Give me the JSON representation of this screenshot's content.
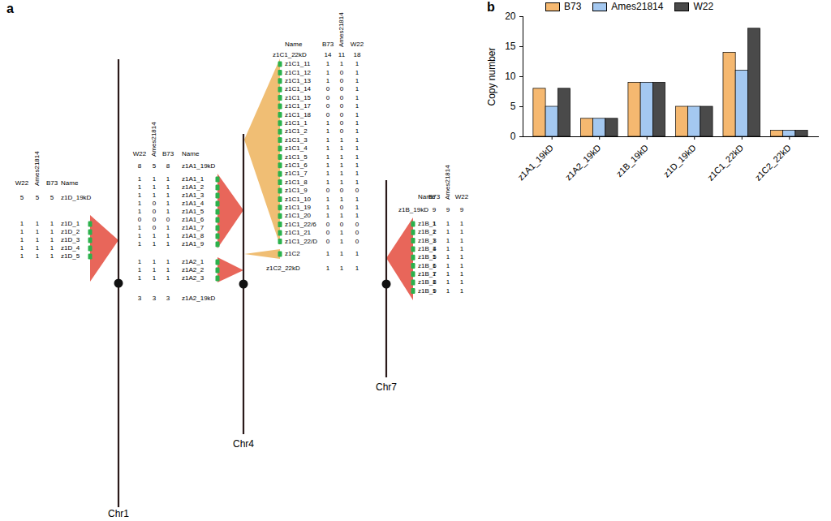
{
  "chart_data": {
    "type": "bar",
    "panel_label": "b",
    "categories": [
      "z1A1_19kD",
      "z1A2_19kD",
      "z1B_19kD",
      "z1D_19kD",
      "z1C1_22kD",
      "z1C2_22kD"
    ],
    "series": [
      {
        "name": "B73",
        "color": "#f5b870",
        "values": [
          8,
          3,
          9,
          5,
          14,
          1
        ]
      },
      {
        "name": "Ames21814",
        "color": "#a4c8f0",
        "values": [
          5,
          3,
          9,
          5,
          11,
          1
        ]
      },
      {
        "name": "W22",
        "color": "#4a4a4a",
        "values": [
          8,
          3,
          9,
          5,
          18,
          1
        ]
      }
    ],
    "ylabel": "Copy number",
    "ylim": [
      0,
      20
    ],
    "yticks": [
      0,
      5,
      10,
      15,
      20
    ],
    "legend": "top"
  },
  "diagram": {
    "panel_label": "a",
    "chromosomes": [
      {
        "name": "Chr1",
        "groups": [
          {
            "name_header": "Name",
            "strain_columns": [
              "W22",
              "Ames21814",
              "B73"
            ],
            "clusters": [
              {
                "name": "z1D_19kD",
                "color": "#e8665a",
                "totals": [
                  5,
                  5,
                  5
                ],
                "genes": [
                  {
                    "name": "z1D_1",
                    "counts": [
                      1,
                      1,
                      1
                    ]
                  },
                  {
                    "name": "z1D_2",
                    "counts": [
                      1,
                      1,
                      1
                    ]
                  },
                  {
                    "name": "z1D_3",
                    "counts": [
                      1,
                      1,
                      1
                    ]
                  },
                  {
                    "name": "z1D_4",
                    "counts": [
                      1,
                      1,
                      1
                    ]
                  },
                  {
                    "name": "z1D_5",
                    "counts": [
                      1,
                      1,
                      1
                    ]
                  }
                ]
              }
            ]
          }
        ]
      },
      {
        "name": "Chr4",
        "groups": [
          {
            "name_header": "Name",
            "strain_columns": [
              "W22",
              "Ames21814",
              "B73"
            ],
            "clusters": [
              {
                "name": "z1A1_19kD",
                "color": "#e8665a",
                "totals": [
                  8,
                  5,
                  8
                ],
                "genes": [
                  {
                    "name": "z1A1_1",
                    "counts": [
                      1,
                      1,
                      1
                    ]
                  },
                  {
                    "name": "z1A1_2",
                    "counts": [
                      1,
                      1,
                      1
                    ]
                  },
                  {
                    "name": "z1A1_3",
                    "counts": [
                      1,
                      1,
                      1
                    ]
                  },
                  {
                    "name": "z1A1_4",
                    "counts": [
                      1,
                      0,
                      1
                    ]
                  },
                  {
                    "name": "z1A1_5",
                    "counts": [
                      1,
                      0,
                      1
                    ]
                  },
                  {
                    "name": "z1A1_6",
                    "counts": [
                      0,
                      0,
                      0
                    ]
                  },
                  {
                    "name": "z1A1_7",
                    "counts": [
                      1,
                      0,
                      1
                    ]
                  },
                  {
                    "name": "z1A1_8",
                    "counts": [
                      1,
                      1,
                      1
                    ]
                  },
                  {
                    "name": "z1A1_9",
                    "counts": [
                      1,
                      1,
                      1
                    ]
                  }
                ]
              },
              {
                "name": "z1A2_19kD",
                "color": "#e8665a",
                "totals": [
                  3,
                  3,
                  3
                ],
                "genes": [
                  {
                    "name": "z1A2_1",
                    "counts": [
                      1,
                      1,
                      1
                    ]
                  },
                  {
                    "name": "z1A2_2",
                    "counts": [
                      1,
                      1,
                      1
                    ]
                  },
                  {
                    "name": "z1A2_3",
                    "counts": [
                      1,
                      1,
                      1
                    ]
                  }
                ]
              }
            ]
          },
          {
            "name_header": "Name",
            "strain_columns": [
              "B73",
              "Ames21814",
              "W22"
            ],
            "clusters": [
              {
                "name": "z1C1_22kD",
                "color": "#f0be74",
                "totals": [
                  14,
                  11,
                  18
                ],
                "genes": [
                  {
                    "name": "z1C1_11",
                    "counts": [
                      1,
                      1,
                      1
                    ]
                  },
                  {
                    "name": "z1C1_12",
                    "counts": [
                      1,
                      0,
                      1
                    ]
                  },
                  {
                    "name": "z1C1_13",
                    "counts": [
                      1,
                      0,
                      1
                    ]
                  },
                  {
                    "name": "z1C1_14",
                    "counts": [
                      0,
                      0,
                      1
                    ]
                  },
                  {
                    "name": "z1C1_15",
                    "counts": [
                      0,
                      0,
                      1
                    ]
                  },
                  {
                    "name": "z1C1_17",
                    "counts": [
                      0,
                      0,
                      1
                    ]
                  },
                  {
                    "name": "z1C1_18",
                    "counts": [
                      0,
                      0,
                      1
                    ]
                  },
                  {
                    "name": "z1C1_1",
                    "counts": [
                      1,
                      0,
                      1
                    ]
                  },
                  {
                    "name": "z1C1_2",
                    "counts": [
                      1,
                      0,
                      1
                    ]
                  },
                  {
                    "name": "z1C1_3",
                    "counts": [
                      1,
                      1,
                      1
                    ]
                  },
                  {
                    "name": "z1C1_4",
                    "counts": [
                      1,
                      1,
                      1
                    ]
                  },
                  {
                    "name": "z1C1_5",
                    "counts": [
                      1,
                      1,
                      1
                    ]
                  },
                  {
                    "name": "z1C1_6",
                    "counts": [
                      1,
                      1,
                      1
                    ]
                  },
                  {
                    "name": "z1C1_7",
                    "counts": [
                      1,
                      1,
                      1
                    ]
                  },
                  {
                    "name": "z1C1_8",
                    "counts": [
                      1,
                      1,
                      1
                    ]
                  },
                  {
                    "name": "z1C1_9",
                    "counts": [
                      0,
                      0,
                      0
                    ]
                  },
                  {
                    "name": "z1C1_10",
                    "counts": [
                      1,
                      1,
                      1
                    ]
                  },
                  {
                    "name": "z1C1_19",
                    "counts": [
                      1,
                      0,
                      1
                    ]
                  },
                  {
                    "name": "z1C1_20",
                    "counts": [
                      1,
                      1,
                      1
                    ]
                  },
                  {
                    "name": "z1C1_22/6",
                    "counts": [
                      0,
                      0,
                      0
                    ]
                  },
                  {
                    "name": "z1C1_21",
                    "counts": [
                      0,
                      1,
                      0
                    ]
                  },
                  {
                    "name": "z1C1_22/D",
                    "counts": [
                      0,
                      1,
                      0
                    ]
                  }
                ]
              },
              {
                "name": "z1C2_22kD",
                "color": "#f0be74",
                "totals": [
                  1,
                  1,
                  1
                ],
                "genes": [
                  {
                    "name": "z1C2",
                    "counts": [
                      1,
                      1,
                      1
                    ]
                  }
                ]
              }
            ]
          }
        ]
      },
      {
        "name": "Chr7",
        "groups": [
          {
            "name_header": "Name",
            "strain_columns": [
              "B73",
              "Ames21814",
              "W22"
            ],
            "clusters": [
              {
                "name": "z1B_19kD",
                "color": "#e8665a",
                "totals": [
                  9,
                  9,
                  9
                ],
                "genes": [
                  {
                    "name": "z1B_1",
                    "counts": [
                      1,
                      1,
                      1
                    ]
                  },
                  {
                    "name": "z1B_2",
                    "counts": [
                      1,
                      1,
                      1
                    ]
                  },
                  {
                    "name": "z1B_3",
                    "counts": [
                      1,
                      1,
                      1
                    ]
                  },
                  {
                    "name": "z1B_4",
                    "counts": [
                      1,
                      1,
                      1
                    ]
                  },
                  {
                    "name": "z1B_5",
                    "counts": [
                      1,
                      1,
                      1
                    ]
                  },
                  {
                    "name": "z1B_6",
                    "counts": [
                      1,
                      1,
                      1
                    ]
                  },
                  {
                    "name": "z1B_7",
                    "counts": [
                      1,
                      1,
                      1
                    ]
                  },
                  {
                    "name": "z1B_8",
                    "counts": [
                      1,
                      1,
                      1
                    ]
                  },
                  {
                    "name": "z1B_9",
                    "counts": [
                      1,
                      1,
                      1
                    ]
                  }
                ]
              }
            ]
          }
        ]
      }
    ]
  }
}
